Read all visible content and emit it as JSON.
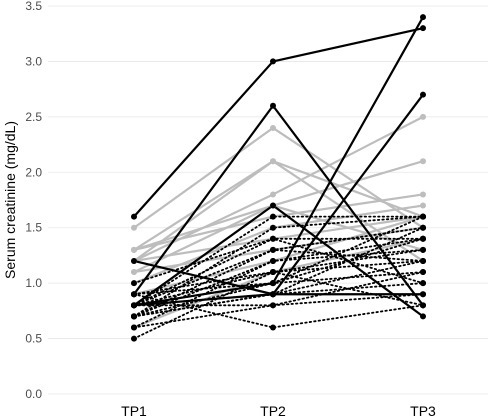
{
  "chart_data": {
    "type": "line",
    "title": "",
    "xlabel": "",
    "ylabel": "Serum creatinine (mg/dL)",
    "categories": [
      "TP1",
      "TP2",
      "TP3"
    ],
    "ylim": [
      0,
      3.5
    ],
    "yticks": [
      0.0,
      0.5,
      1.0,
      1.5,
      2.0,
      2.5,
      3.0,
      3.5
    ],
    "ytick_labels": [
      "0.0",
      "0.5",
      "1.0",
      "1.5",
      "2.0",
      "2.5",
      "3.0",
      "3.5"
    ],
    "grid": true,
    "legend": "none",
    "colors": {
      "solid_dark": "#000000",
      "solid_gray": "#bdbdbd",
      "dotted": "#000000"
    },
    "groups": [
      {
        "style": "solid_gray",
        "series": [
          {
            "values": [
              1.5,
              2.4,
              1.5
            ]
          },
          {
            "values": [
              1.3,
              2.1,
              1.6
            ]
          },
          {
            "values": [
              1.2,
              1.8,
              2.5
            ]
          },
          {
            "values": [
              1.1,
              1.7,
              2.1
            ]
          },
          {
            "values": [
              1.3,
              1.6,
              1.8
            ]
          },
          {
            "values": [
              1.0,
              1.5,
              1.7
            ]
          },
          {
            "values": [
              1.2,
              1.4,
              1.6
            ]
          },
          {
            "values": [
              1.1,
              1.3,
              1.5
            ]
          },
          {
            "values": [
              0.9,
              1.2,
              1.6
            ]
          },
          {
            "values": [
              1.3,
              1.7,
              1.3
            ]
          },
          {
            "values": [
              1.2,
              2.1,
              1.2
            ]
          },
          {
            "values": [
              0.6,
              1.1,
              1.4
            ]
          }
        ]
      },
      {
        "style": "dotted",
        "series": [
          {
            "values": [
              0.8,
              1.6,
              1.6
            ]
          },
          {
            "values": [
              0.7,
              1.5,
              1.6
            ]
          },
          {
            "values": [
              0.8,
              1.4,
              1.4
            ]
          },
          {
            "values": [
              0.7,
              1.3,
              1.5
            ]
          },
          {
            "values": [
              0.6,
              1.2,
              1.3
            ]
          },
          {
            "values": [
              0.5,
              1.1,
              1.2
            ]
          },
          {
            "values": [
              0.8,
              1.0,
              1.1
            ]
          },
          {
            "values": [
              0.7,
              0.9,
              1.0
            ]
          },
          {
            "values": [
              0.8,
              0.8,
              0.9
            ]
          },
          {
            "values": [
              0.9,
              0.6,
              0.8
            ]
          },
          {
            "values": [
              0.7,
              1.2,
              1.4
            ]
          },
          {
            "values": [
              0.8,
              1.3,
              1.2
            ]
          },
          {
            "values": [
              0.9,
              1.1,
              1.3
            ]
          },
          {
            "values": [
              0.7,
              1.0,
              1.4
            ]
          },
          {
            "values": [
              0.8,
              0.9,
              1.5
            ]
          },
          {
            "values": [
              0.6,
              0.8,
              1.1
            ]
          },
          {
            "values": [
              0.9,
              1.0,
              1.6
            ]
          },
          {
            "values": [
              0.7,
              0.9,
              1.2
            ]
          },
          {
            "values": [
              1.0,
              1.4,
              1.0
            ]
          },
          {
            "values": [
              0.8,
              1.1,
              0.8
            ]
          }
        ]
      },
      {
        "style": "solid_dark",
        "series": [
          {
            "values": [
              1.6,
              3.0,
              3.3
            ]
          },
          {
            "values": [
              0.9,
              2.6,
              0.8
            ]
          },
          {
            "values": [
              0.8,
              1.0,
              3.4
            ]
          },
          {
            "values": [
              0.8,
              0.9,
              2.7
            ]
          },
          {
            "values": [
              1.2,
              0.9,
              0.9
            ]
          },
          {
            "values": [
              0.8,
              1.7,
              0.7
            ]
          }
        ]
      }
    ]
  }
}
